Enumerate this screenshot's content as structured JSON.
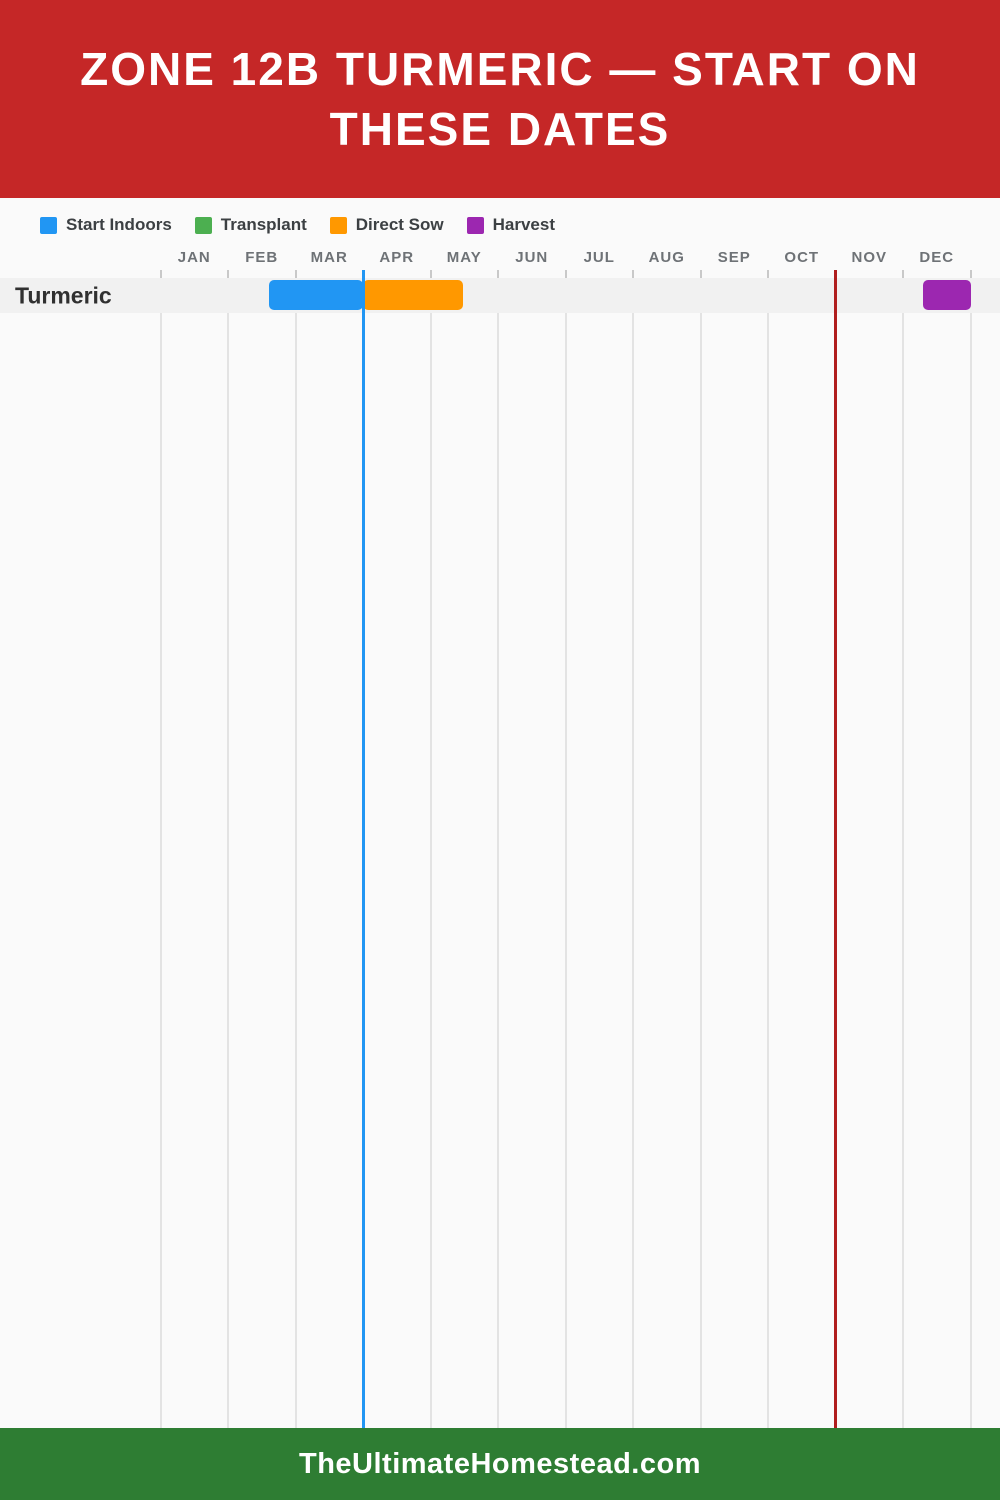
{
  "header": {
    "title": "ZONE 12B TURMERIC — START ON THESE DATES",
    "bg_color": "#C52727",
    "text_color": "#FFFFFF"
  },
  "legend": {
    "items": [
      {
        "label": "Start Indoors",
        "color": "#2196F3"
      },
      {
        "label": "Transplant",
        "color": "#4CAF50"
      },
      {
        "label": "Direct Sow",
        "color": "#FF9800"
      },
      {
        "label": "Harvest",
        "color": "#9C27B0"
      }
    ]
  },
  "chart_data": {
    "type": "timeline",
    "title": "Zone 12b Turmeric planting calendar",
    "months": [
      "JAN",
      "FEB",
      "MAR",
      "APR",
      "MAY",
      "JUN",
      "JUL",
      "AUG",
      "SEP",
      "OCT",
      "NOV",
      "DEC"
    ],
    "axis": {
      "range_months": [
        0,
        12
      ],
      "grid": true,
      "month_label_color": "#6E7276"
    },
    "rows": [
      {
        "label": "Turmeric",
        "bars": [
          {
            "series": "Start Indoors",
            "color": "#2196F3",
            "start_month": 1.6,
            "end_month": 3.0
          },
          {
            "series": "Direct Sow",
            "color": "#FF9800",
            "start_month": 3.0,
            "end_month": 4.48
          },
          {
            "series": "Harvest",
            "color": "#9C27B0",
            "start_month": 11.3,
            "end_month": 12.0
          }
        ]
      }
    ],
    "markers": [
      {
        "name": "spring-frost-line",
        "color": "#2196F3",
        "month": 3.0
      },
      {
        "name": "fall-frost-line",
        "color": "#B01E1E",
        "month": 10.0
      }
    ]
  },
  "footer": {
    "site": "TheUltimateHomestead.com",
    "bg_color": "#2E7D33",
    "text_color": "#FFFFFF"
  }
}
